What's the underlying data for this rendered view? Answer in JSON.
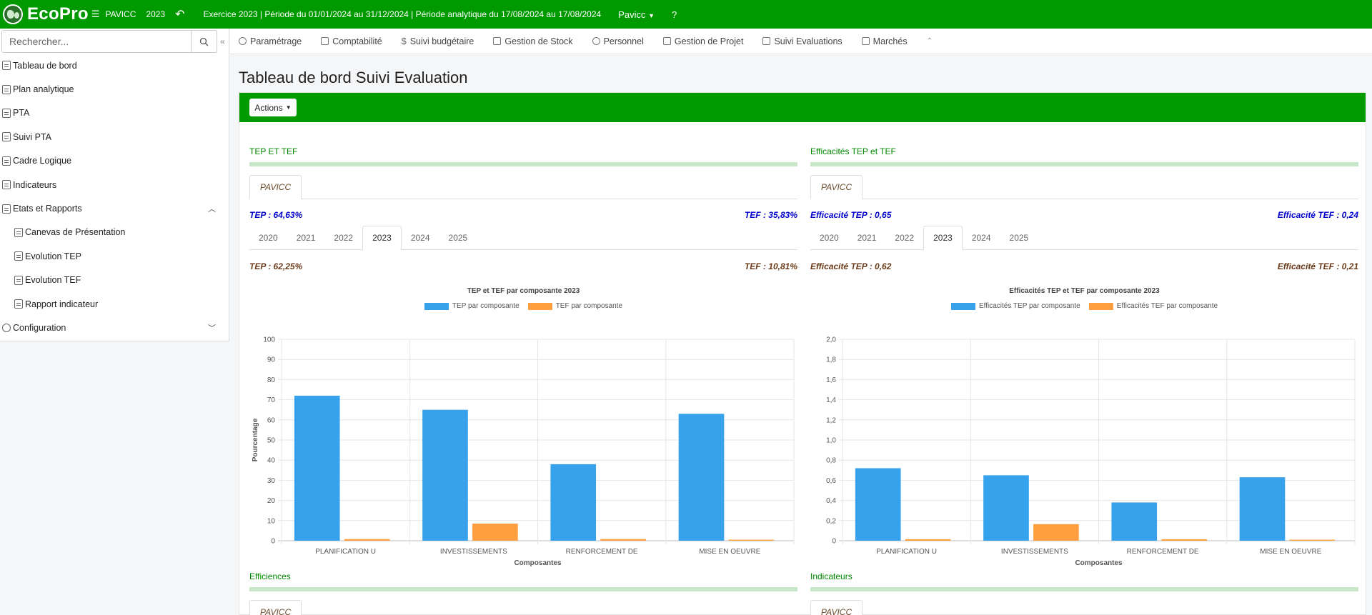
{
  "topbar": {
    "brand": "EcoPro",
    "project": "PAVICC",
    "year": "2023",
    "period": "Exercice 2023 | Période du 01/01/2024 au 31/12/2024 | Période analytique du 17/08/2024 au 17/08/2024",
    "user": "Pavicc",
    "help": "?"
  },
  "sidebar": {
    "search_placeholder": "Rechercher...",
    "items": [
      {
        "label": "Tableau de bord"
      },
      {
        "label": "Plan analytique"
      },
      {
        "label": "PTA"
      },
      {
        "label": "Suivi PTA"
      },
      {
        "label": "Cadre Logique"
      },
      {
        "label": "Indicateurs"
      },
      {
        "label": "Etats et Rapports"
      },
      {
        "label": "Canevas de Présentation"
      },
      {
        "label": "Evolution TEP"
      },
      {
        "label": "Evolution TEF"
      },
      {
        "label": "Rapport indicateur"
      },
      {
        "label": "Configuration"
      }
    ]
  },
  "menu": [
    {
      "label": "Paramétrage"
    },
    {
      "label": "Comptabilité"
    },
    {
      "label": "Suivi budgétaire"
    },
    {
      "label": "Gestion de Stock"
    },
    {
      "label": "Personnel"
    },
    {
      "label": "Gestion de Projet"
    },
    {
      "label": "Suivi Evaluations"
    },
    {
      "label": "Marchés"
    }
  ],
  "page": {
    "title": "Tableau de bord Suivi Evaluation",
    "actions_label": "Actions"
  },
  "colors": {
    "green": "#009900",
    "tep": "#36a2eb",
    "tef": "#ff9f40"
  },
  "panels": {
    "tep_tef": {
      "title": "TEP ET TEF",
      "tab": "PAVICC",
      "total_left": "TEP : 64,63%",
      "total_right": "TEF : 35,83%",
      "years": [
        "2020",
        "2021",
        "2022",
        "2023",
        "2024",
        "2025"
      ],
      "active_year": "2023",
      "year_left": "TEP : 62,25%",
      "year_right": "TEF : 10,81%"
    },
    "efficacites": {
      "title": "Efficacités TEP et TEF",
      "tab": "PAVICC",
      "total_left": "Efficacité TEP : 0,65",
      "total_right": "Efficacité TEF : 0,24",
      "years": [
        "2020",
        "2021",
        "2022",
        "2023",
        "2024",
        "2025"
      ],
      "active_year": "2023",
      "year_left": "Efficacité TEP : 0,62",
      "year_right": "Efficacité TEF : 0,21"
    },
    "efficiences": {
      "title": "Efficiences",
      "tab": "PAVICC"
    },
    "indicateurs": {
      "title": "Indicateurs",
      "tab": "PAVICC"
    }
  },
  "chart_data": [
    {
      "type": "bar",
      "title": "TEP et TEF par composante 2023",
      "xlabel": "Composantes",
      "ylabel": "Pourcentage",
      "ylim": [
        0,
        100
      ],
      "yticks": [
        "0",
        "10",
        "20",
        "30",
        "40",
        "50",
        "60",
        "70",
        "80",
        "90",
        "100"
      ],
      "categories": [
        "PLANIFICATION U",
        "INVESTISSEMENTS",
        "RENFORCEMENT DE",
        "MISE EN OEUVRE"
      ],
      "series": [
        {
          "name": "TEP par composante",
          "values": [
            72,
            65,
            38,
            63
          ]
        },
        {
          "name": "TEF par composante",
          "values": [
            0.8,
            8.5,
            0.8,
            0.5
          ]
        }
      ],
      "legend": "top"
    },
    {
      "type": "bar",
      "title": "Efficacités TEP et TEF par composante 2023",
      "xlabel": "Composantes",
      "ylabel": "",
      "ylim": [
        0,
        2
      ],
      "yticks": [
        "0",
        "0,2",
        "0,4",
        "0,6",
        "0,8",
        "1,0",
        "1,2",
        "1,4",
        "1,6",
        "1,8",
        "2,0"
      ],
      "categories": [
        "PLANIFICATION U",
        "INVESTISSEMENTS",
        "RENFORCEMENT DE",
        "MISE EN OEUVRE"
      ],
      "series": [
        {
          "name": "Efficacités TEP par composante",
          "values": [
            0.72,
            0.65,
            0.38,
            0.63
          ]
        },
        {
          "name": "Efficacités TEF par composante",
          "values": [
            0.015,
            0.165,
            0.015,
            0.01
          ]
        }
      ],
      "legend": "top"
    }
  ]
}
